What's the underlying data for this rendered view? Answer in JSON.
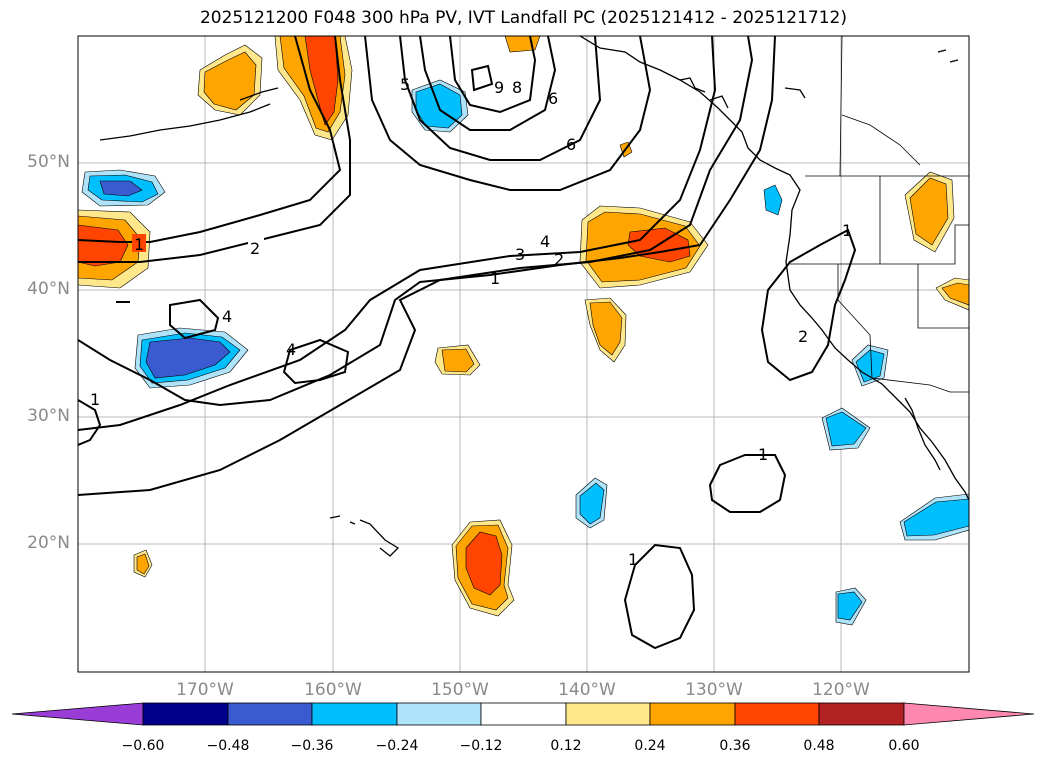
{
  "title": "2025121200 F048 300 hPa PV, IVT Landfall PC (2025121412 - 2025121712)",
  "latitude_labels": [
    "50°N",
    "40°N",
    "30°N",
    "20°N"
  ],
  "longitude_labels": [
    "170°W",
    "160°W",
    "150°W",
    "140°W",
    "130°W",
    "120°W"
  ],
  "contour_labels": [
    "1",
    "2",
    "4",
    "3",
    "2",
    "1",
    "4",
    "4",
    "6",
    "6",
    "8",
    "9",
    "5",
    "1",
    "1",
    "1",
    "1",
    "2"
  ],
  "colorbar": {
    "ticks": [
      "−0.60",
      "−0.48",
      "−0.36",
      "−0.24",
      "−0.12",
      "0.12",
      "0.24",
      "0.36",
      "0.48",
      "0.60"
    ],
    "colors": [
      "#9a3dd6",
      "#00008c",
      "#3a5ad0",
      "#00bfff",
      "#aee3fa",
      "#ffffff",
      "#ffe88c",
      "#ffa500",
      "#ff4500",
      "#b22222",
      "#ff88b0"
    ]
  }
}
